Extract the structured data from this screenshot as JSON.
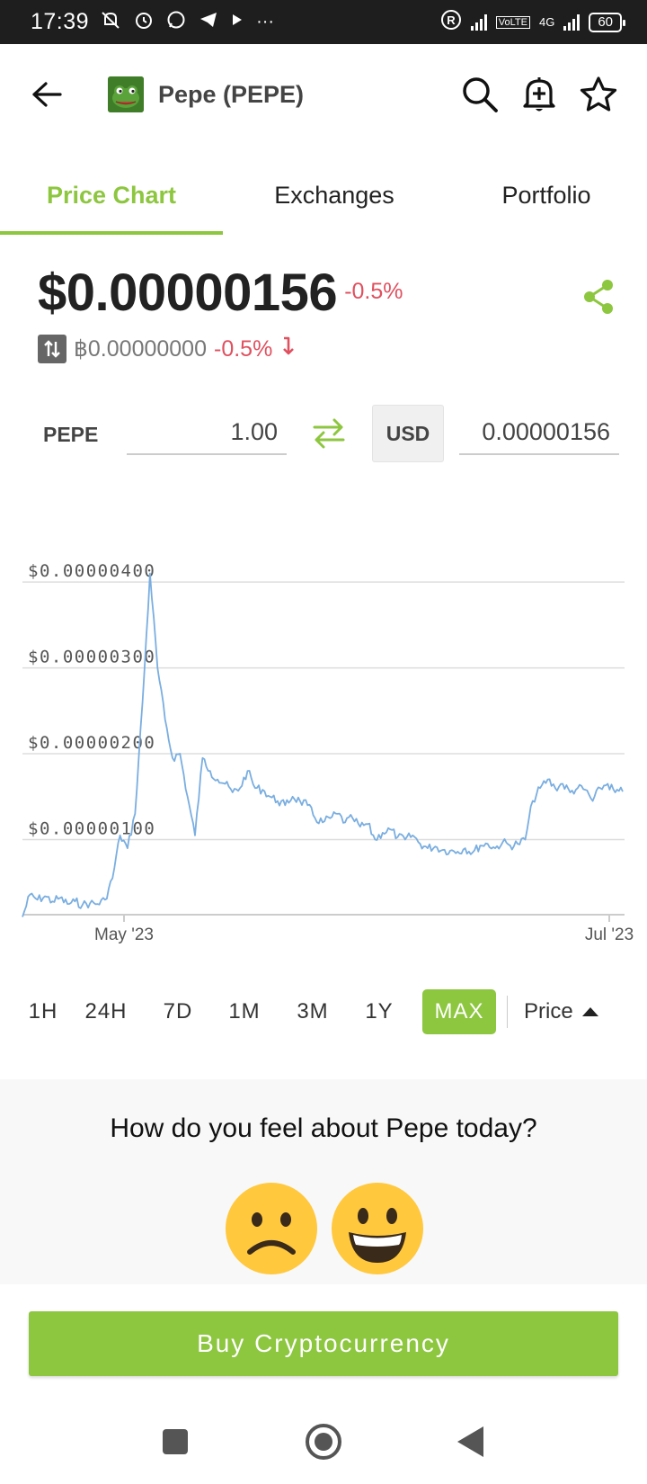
{
  "status_bar": {
    "time": "17:39",
    "network": "4G",
    "battery": "60"
  },
  "header": {
    "title": "Pepe (PEPE)"
  },
  "tabs": [
    {
      "label": "Price Chart",
      "active": true
    },
    {
      "label": "Exchanges",
      "active": false
    },
    {
      "label": "Portfolio",
      "active": false
    }
  ],
  "price": {
    "usd": "$0.00000156",
    "change_24h": "-0.5%",
    "btc": "฿0.00000000",
    "btc_change": "-0.5%"
  },
  "converter": {
    "from_symbol": "PEPE",
    "from_amount": "1.00",
    "to_currency": "USD",
    "to_amount": "0.00000156"
  },
  "chart_data": {
    "type": "line",
    "y_ticks": [
      "$0.00000100",
      "$0.00000200",
      "$0.00000300",
      "$0.00000400"
    ],
    "x_ticks": [
      "May '23",
      "Jul '23"
    ],
    "ylim": [
      0,
      4.2e-06
    ],
    "series": [
      {
        "x": [
          0,
          1,
          2,
          3,
          4,
          5,
          6,
          7,
          8,
          9,
          10,
          11,
          12,
          13,
          14,
          15,
          16,
          17,
          18,
          19,
          20,
          21,
          22,
          23,
          24,
          25,
          26,
          27,
          28,
          29,
          30,
          31,
          32,
          33,
          34,
          35,
          36,
          37,
          38,
          39,
          40,
          41,
          42,
          43,
          44,
          45,
          46,
          47,
          48,
          49,
          50,
          51,
          52,
          53,
          54,
          55,
          56,
          57,
          58,
          59,
          60,
          61,
          62,
          63,
          64,
          65,
          66,
          67,
          68,
          69,
          70,
          71,
          72,
          73,
          74,
          75,
          76,
          77,
          78,
          79,
          80
        ],
        "values": [
          1e-07,
          3.6e-07,
          3e-07,
          3.4e-07,
          2.8e-07,
          3.2e-07,
          2.5e-07,
          2.8e-07,
          2.4e-07,
          2.6e-07,
          2.5e-07,
          3e-07,
          5.5e-07,
          1.05e-06,
          9e-07,
          1.3e-06,
          2.6e-06,
          4.1e-06,
          3e-06,
          2.4e-06,
          1.95e-06,
          2e-06,
          1.5e-06,
          1.05e-06,
          1.95e-06,
          1.8e-06,
          1.7e-06,
          1.65e-06,
          1.55e-06,
          1.6e-06,
          1.8e-06,
          1.6e-06,
          1.58e-06,
          1.5e-06,
          1.45e-06,
          1.4e-06,
          1.5e-06,
          1.45e-06,
          1.4e-06,
          1.25e-06,
          1.2e-06,
          1.25e-06,
          1.3e-06,
          1.2e-06,
          1.25e-06,
          1.15e-06,
          1.18e-06,
          1e-06,
          1.08e-06,
          1.12e-06,
          1.03e-06,
          1e-06,
          1.05e-06,
          9.5e-07,
          9e-07,
          9.2e-07,
          8.8e-07,
          8.7e-07,
          8.6e-07,
          9e-07,
          8.5e-07,
          9.3e-07,
          9.5e-07,
          9e-07,
          9.7e-07,
          9.3e-07,
          9.5e-07,
          1e-06,
          1.45e-06,
          1.6e-06,
          1.7e-06,
          1.6e-06,
          1.65e-06,
          1.55e-06,
          1.6e-06,
          1.58e-06,
          1.45e-06,
          1.6e-06,
          1.65e-06,
          1.55e-06,
          1.56e-06
        ]
      }
    ],
    "grid": true,
    "color": "#7aaee0"
  },
  "ranges": {
    "items": [
      "1H",
      "24H",
      "7D",
      "1M",
      "3M",
      "1Y",
      "MAX"
    ],
    "active": "MAX",
    "metric": "Price"
  },
  "sentiment": {
    "question": "How do you feel about Pepe today?"
  },
  "buy_button": {
    "label": "Buy Cryptocurrency"
  },
  "colors": {
    "accent": "#8dc63f",
    "negative": "#e0505f"
  }
}
